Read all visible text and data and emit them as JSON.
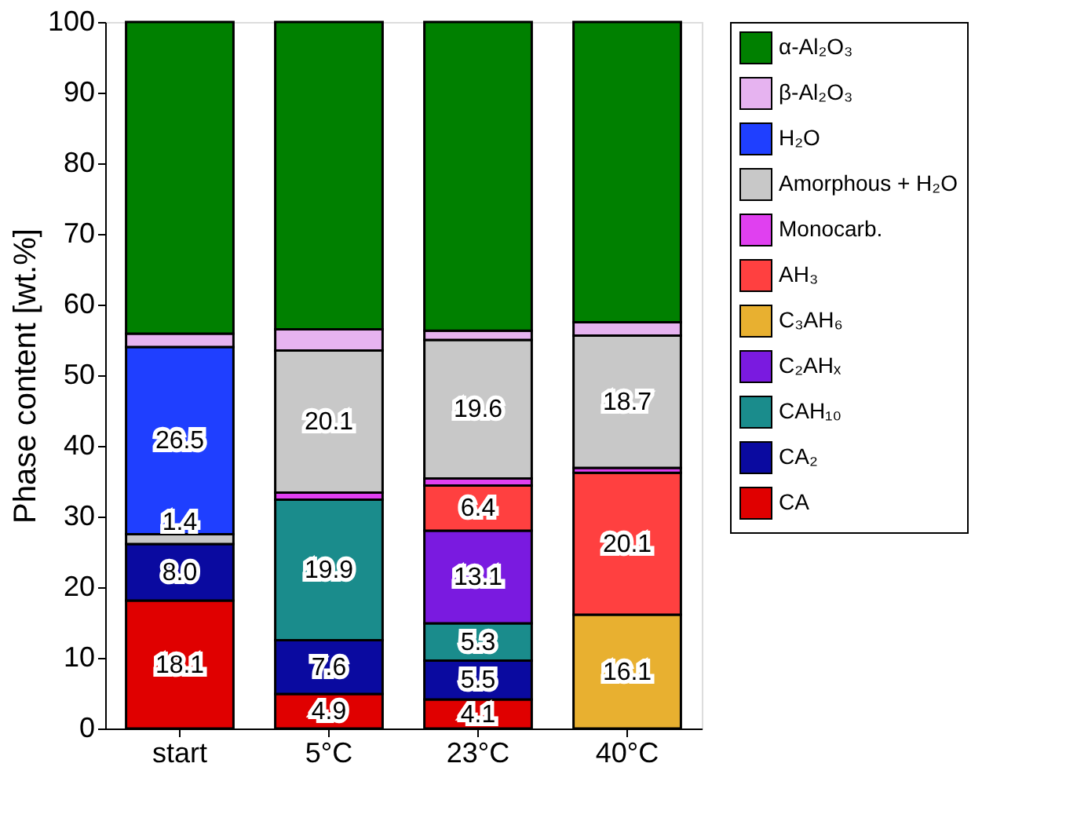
{
  "chart_data": {
    "type": "bar",
    "stacked": true,
    "ylabel": "Phase content [wt.%]",
    "categories": [
      "start",
      "5°C",
      "23°C",
      "40°C"
    ],
    "ylim": [
      0,
      100
    ],
    "yticks": [
      0,
      10,
      20,
      30,
      40,
      50,
      60,
      70,
      80,
      90,
      100
    ],
    "grid": false,
    "legend": "right",
    "series": [
      {
        "name": "CA",
        "color": "#e00000",
        "values": [
          18.1,
          4.9,
          4.1,
          null
        ],
        "value_labels": [
          "18.1",
          "4.9",
          "4.1",
          null
        ]
      },
      {
        "name": "CA₂",
        "color": "#0a0aa0",
        "values": [
          8.0,
          7.6,
          5.5,
          null
        ],
        "value_labels": [
          "8.0",
          "7.6",
          "5.5",
          null
        ]
      },
      {
        "name": "CAH₁₀",
        "color": "#1a8c8c",
        "values": [
          null,
          19.9,
          5.3,
          null
        ],
        "value_labels": [
          null,
          "19.9",
          "5.3",
          null
        ]
      },
      {
        "name": "C₂AHₓ",
        "color": "#7a1ae0",
        "values": [
          null,
          null,
          13.1,
          null
        ],
        "value_labels": [
          null,
          null,
          "13.1",
          null
        ]
      },
      {
        "name": "C₃AH₆",
        "color": "#e8b030",
        "values": [
          null,
          null,
          null,
          16.1
        ],
        "value_labels": [
          null,
          null,
          null,
          "16.1"
        ]
      },
      {
        "name": "AH₃",
        "color": "#ff4040",
        "values": [
          null,
          null,
          6.4,
          20.1
        ],
        "value_labels": [
          null,
          null,
          "6.4",
          "20.1"
        ]
      },
      {
        "name": "Monocarb.",
        "color": "#e040f0",
        "values": [
          null,
          1.0,
          1.0,
          0.7
        ],
        "value_labels": [
          null,
          null,
          null,
          null
        ]
      },
      {
        "name": "Amorphous + H₂O",
        "color": "#c8c8c8",
        "values": [
          1.4,
          20.1,
          19.6,
          18.7
        ],
        "value_labels": [
          "1.4",
          "20.1",
          "19.6",
          "18.7"
        ]
      },
      {
        "name": "H₂O",
        "color": "#1f3fff",
        "values": [
          26.5,
          null,
          null,
          null
        ],
        "value_labels": [
          "26.5",
          null,
          null,
          null
        ]
      },
      {
        "name": "β-Al₂O₃",
        "color": "#e6b3f0",
        "values": [
          1.9,
          3.0,
          1.3,
          1.9
        ],
        "value_labels": [
          null,
          null,
          null,
          null
        ]
      },
      {
        "name": "α-Al₂O₃",
        "color": "#008000",
        "values": [
          44.1,
          43.5,
          43.7,
          42.5
        ],
        "value_labels": [
          null,
          null,
          null,
          null
        ]
      }
    ]
  }
}
